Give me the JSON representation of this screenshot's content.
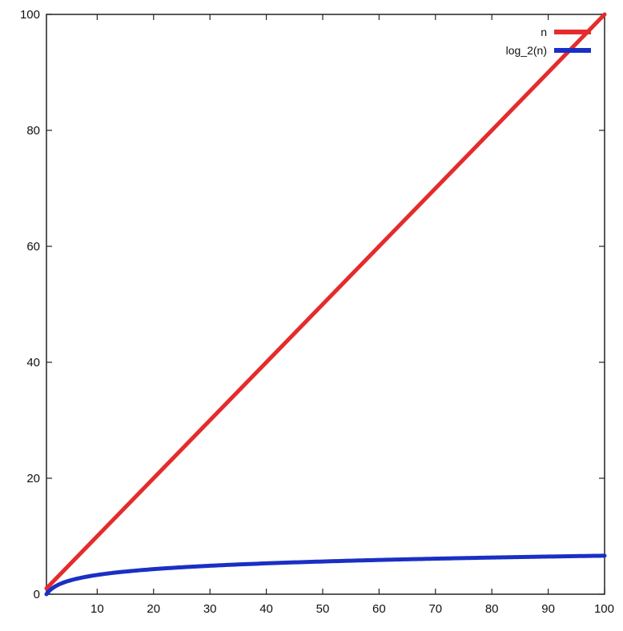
{
  "chart_data": {
    "type": "line",
    "title": "",
    "xlabel": "",
    "ylabel": "",
    "xlim": [
      1,
      100
    ],
    "ylim": [
      0,
      100
    ],
    "xticks": [
      10,
      20,
      30,
      40,
      50,
      60,
      70,
      80,
      90,
      100
    ],
    "yticks": [
      0,
      20,
      40,
      60,
      80,
      100
    ],
    "xtick_labels": [
      "10",
      "20",
      "30",
      "40",
      "50",
      "60",
      "70",
      "80",
      "90",
      "100"
    ],
    "ytick_labels": [
      "0",
      "20",
      "40",
      "60",
      "80",
      "100"
    ],
    "grid": false,
    "legend_position": "top-right",
    "series": [
      {
        "name": "n",
        "color": "#e52b2b",
        "x": [
          1,
          10,
          20,
          30,
          40,
          50,
          60,
          70,
          80,
          90,
          100
        ],
        "y": [
          1,
          10,
          20,
          30,
          40,
          50,
          60,
          70,
          80,
          90,
          100
        ]
      },
      {
        "name": "log_2(n)",
        "color": "#1a2fc4",
        "x": [
          1,
          2,
          3,
          5,
          8,
          10,
          15,
          20,
          30,
          40,
          50,
          60,
          70,
          80,
          90,
          100
        ],
        "y": [
          0,
          1,
          1.58,
          2.32,
          3,
          3.32,
          3.91,
          4.32,
          4.91,
          5.32,
          5.64,
          5.91,
          6.13,
          6.32,
          6.49,
          6.64
        ]
      }
    ]
  }
}
